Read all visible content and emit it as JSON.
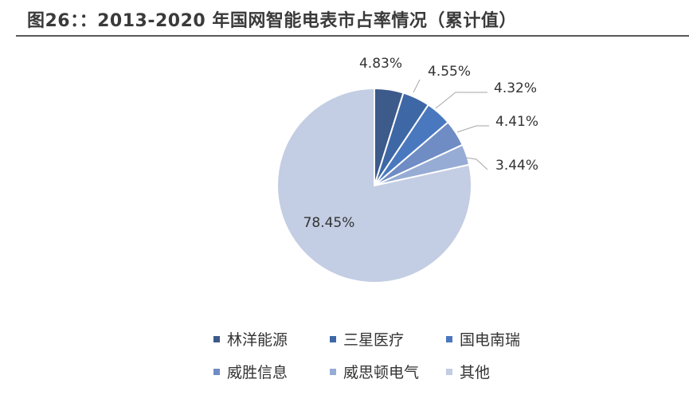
{
  "title": "图26：：2013-2020 年国网智能电表市占率情况（累计值）",
  "chart_data": {
    "type": "pie",
    "categories": [
      "林洋能源",
      "三星医疗",
      "国电南瑞",
      "威胜信息",
      "威思顿电气",
      "其他"
    ],
    "values": [
      4.83,
      4.55,
      4.32,
      4.41,
      3.44,
      78.45
    ],
    "labels": [
      "4.83%",
      "4.55%",
      "4.32%",
      "4.41%",
      "3.44%",
      "78.45%"
    ],
    "colors": [
      "#3c5a8a",
      "#3e67a6",
      "#4a78bf",
      "#6f8cc4",
      "#96acd4",
      "#c3cde3"
    ],
    "start_angle_deg": 0,
    "direction": "clockwise",
    "legend_position": "bottom"
  }
}
